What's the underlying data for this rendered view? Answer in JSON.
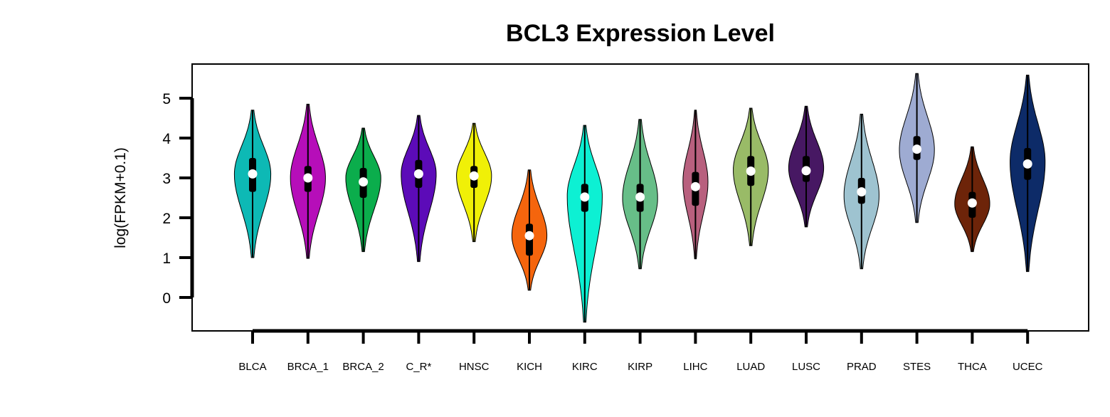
{
  "chart_data": {
    "type": "violin",
    "title": "BCL3 Expression Level",
    "xlabel": "",
    "ylabel": "log(FPKM+0.1)",
    "ylim": [
      -0.85,
      5.85
    ],
    "yticks": [
      0,
      1,
      2,
      3,
      4,
      5
    ],
    "grid": false,
    "legend": "none",
    "categories": [
      "BLCA",
      "BRCA_1",
      "BRCA_2",
      "C_R*",
      "HNSC",
      "KICH",
      "KIRC",
      "KIRP",
      "LIHC",
      "LUAD",
      "LUSC",
      "PRAD",
      "STES",
      "THCA",
      "UCEC"
    ],
    "colors": [
      "#0db9b5",
      "#b60eb9",
      "#0bad4c",
      "#5c0bb8",
      "#f0f007",
      "#f5650d",
      "#0df0d3",
      "#67be88",
      "#b8607e",
      "#99bb67",
      "#471863",
      "#9ec3d0",
      "#9eabd2",
      "#6d2409",
      "#0d2b68"
    ],
    "series": [
      {
        "min": 1.0,
        "q1": 2.65,
        "median": 3.1,
        "q3": 3.5,
        "max": 4.7,
        "mode": 3.1,
        "width": 0.8
      },
      {
        "min": 0.98,
        "q1": 2.65,
        "median": 3.0,
        "q3": 3.3,
        "max": 4.85,
        "mode": 3.0,
        "width": 0.77
      },
      {
        "min": 1.15,
        "q1": 2.5,
        "median": 2.9,
        "q3": 3.25,
        "max": 4.25,
        "mode": 3.0,
        "width": 0.77
      },
      {
        "min": 0.9,
        "q1": 2.75,
        "median": 3.1,
        "q3": 3.45,
        "max": 4.57,
        "mode": 3.1,
        "width": 0.77
      },
      {
        "min": 1.4,
        "q1": 2.75,
        "median": 3.05,
        "q3": 3.3,
        "max": 4.37,
        "mode": 3.05,
        "width": 0.77
      },
      {
        "min": 0.18,
        "q1": 1.05,
        "median": 1.55,
        "q3": 1.85,
        "max": 3.2,
        "mode": 1.55,
        "width": 0.77
      },
      {
        "min": -0.62,
        "q1": 2.15,
        "median": 2.52,
        "q3": 2.85,
        "max": 4.32,
        "mode": 2.55,
        "width": 0.77
      },
      {
        "min": 0.72,
        "q1": 2.15,
        "median": 2.52,
        "q3": 2.85,
        "max": 4.47,
        "mode": 2.5,
        "width": 0.77
      },
      {
        "min": 0.97,
        "q1": 2.3,
        "median": 2.78,
        "q3": 3.15,
        "max": 4.7,
        "mode": 2.9,
        "width": 0.55
      },
      {
        "min": 1.3,
        "q1": 2.8,
        "median": 3.17,
        "q3": 3.55,
        "max": 4.75,
        "mode": 3.2,
        "width": 0.77
      },
      {
        "min": 1.77,
        "q1": 2.9,
        "median": 3.18,
        "q3": 3.55,
        "max": 4.8,
        "mode": 3.25,
        "width": 0.77
      },
      {
        "min": 0.72,
        "q1": 2.35,
        "median": 2.65,
        "q3": 3.0,
        "max": 4.6,
        "mode": 2.55,
        "width": 0.77
      },
      {
        "min": 1.88,
        "q1": 3.45,
        "median": 3.72,
        "q3": 4.05,
        "max": 5.62,
        "mode": 3.7,
        "width": 0.77
      },
      {
        "min": 1.15,
        "q1": 2.0,
        "median": 2.37,
        "q3": 2.65,
        "max": 3.78,
        "mode": 2.35,
        "width": 0.77
      },
      {
        "min": 0.65,
        "q1": 2.95,
        "median": 3.35,
        "q3": 3.75,
        "max": 5.58,
        "mode": 3.4,
        "width": 0.77
      }
    ]
  }
}
